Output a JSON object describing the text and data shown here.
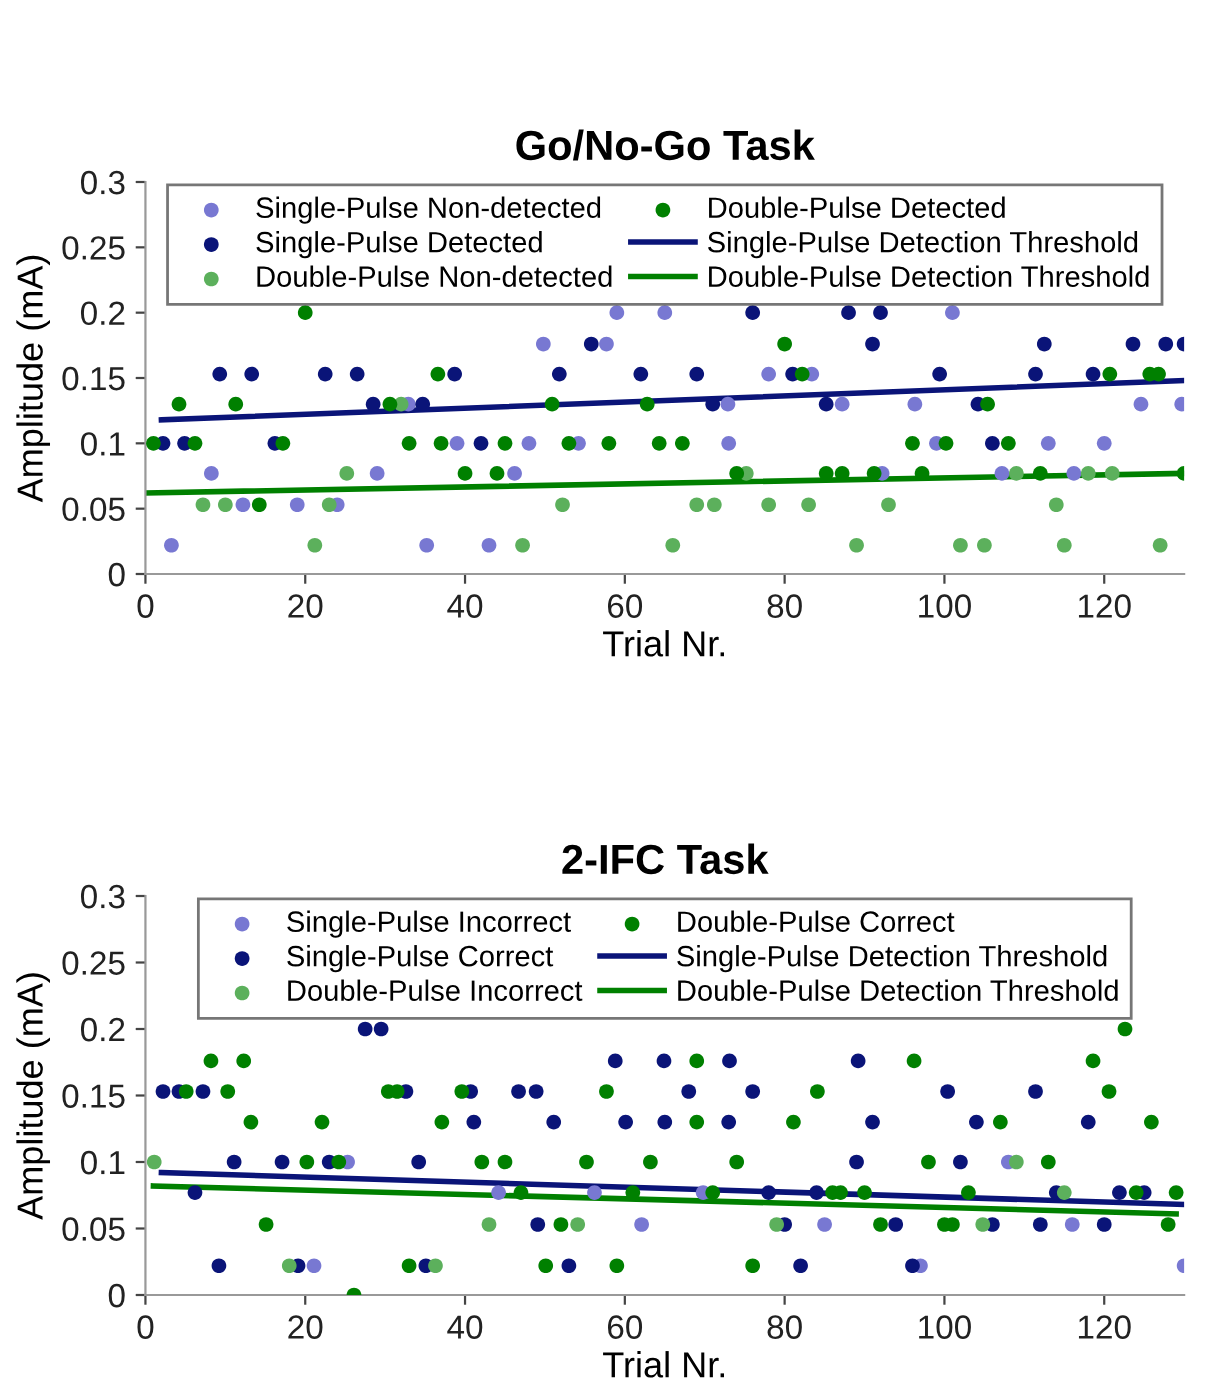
{
  "chart_data": [
    {
      "type": "scatter",
      "title": "Go/No-Go Task",
      "xlabel": "Trial Nr.",
      "ylabel": "Amplitude (mA)",
      "xlim": [
        0,
        130
      ],
      "ylim": [
        0,
        0.3
      ],
      "xticks": [
        0,
        20,
        40,
        60,
        80,
        100,
        120
      ],
      "yticks": [
        0,
        0.05,
        0.1,
        0.15,
        0.2,
        0.25,
        0.3
      ],
      "grid": false,
      "legend": "top",
      "marker": "circle",
      "series": [
        {
          "name": "Single-Pulse Non-detected",
          "color": "#7878d2",
          "x": [
            59,
            65,
            101,
            49.8,
            57.7,
            78,
            83.4,
            32.9,
            72.9,
            87.2,
            96.3,
            124.6,
            129.7,
            39,
            48,
            54.2,
            73,
            99,
            113,
            120,
            8.25,
            29,
            46.2,
            92.2,
            107.2,
            116.2,
            12.2,
            19,
            24,
            3.25,
            35.2,
            43
          ],
          "values": [
            0.2,
            0.2,
            0.2,
            0.176,
            0.176,
            0.153,
            0.153,
            0.13,
            0.13,
            0.13,
            0.13,
            0.13,
            0.13,
            0.1,
            0.1,
            0.1,
            0.1,
            0.1,
            0.1,
            0.1,
            0.077,
            0.077,
            0.077,
            0.077,
            0.077,
            0.077,
            0.053,
            0.053,
            0.053,
            0.022,
            0.022,
            0.022
          ]
        },
        {
          "name": "Single-Pulse Detected",
          "color": "#0a1478",
          "x": [
            76,
            88,
            92,
            55.8,
            91,
            112.5,
            123.6,
            127.7,
            130,
            9.3,
            13.3,
            22.5,
            26.5,
            38.7,
            51.8,
            62,
            69,
            81,
            99.4,
            111.4,
            118.6,
            28.5,
            34.7,
            71,
            85.2,
            104.2,
            2.2,
            4.9,
            16.2,
            42,
            106
          ],
          "values": [
            0.2,
            0.2,
            0.2,
            0.176,
            0.176,
            0.176,
            0.176,
            0.176,
            0.176,
            0.153,
            0.153,
            0.153,
            0.153,
            0.153,
            0.153,
            0.153,
            0.153,
            0.153,
            0.153,
            0.153,
            0.153,
            0.13,
            0.13,
            0.13,
            0.13,
            0.13,
            0.1,
            0.1,
            0.1,
            0.1,
            0.1
          ]
        },
        {
          "name": "Double-Pulse Non-detected",
          "color": "#5cb05c",
          "x": [
            32,
            25.2,
            75.2,
            109,
            118,
            121,
            7.2,
            10,
            23,
            52.2,
            69,
            71.2,
            78,
            83,
            93,
            114,
            21.2,
            47.2,
            66,
            89,
            102,
            105,
            115,
            127
          ],
          "values": [
            0.13,
            0.077,
            0.077,
            0.077,
            0.077,
            0.077,
            0.053,
            0.053,
            0.053,
            0.053,
            0.053,
            0.053,
            0.053,
            0.053,
            0.053,
            0.053,
            0.022,
            0.022,
            0.022,
            0.022,
            0.022,
            0.022,
            0.022,
            0.022
          ]
        },
        {
          "name": "Double-Pulse Detected",
          "color": "#008000",
          "x": [
            20,
            80,
            36.6,
            82.2,
            120.7,
            125.7,
            126.8,
            4.2,
            11.3,
            30.6,
            50.9,
            62.8,
            105.4,
            1,
            6.2,
            17.2,
            33,
            37,
            45,
            53,
            58,
            64.3,
            67.2,
            96,
            100.2,
            108,
            40,
            44,
            74,
            85.2,
            87.2,
            91.2,
            97.2,
            112,
            130,
            14.25
          ],
          "values": [
            0.2,
            0.176,
            0.153,
            0.153,
            0.153,
            0.153,
            0.153,
            0.13,
            0.13,
            0.13,
            0.13,
            0.13,
            0.13,
            0.1,
            0.1,
            0.1,
            0.1,
            0.1,
            0.1,
            0.1,
            0.1,
            0.1,
            0.1,
            0.1,
            0.1,
            0.1,
            0.077,
            0.077,
            0.077,
            0.077,
            0.077,
            0.077,
            0.077,
            0.077,
            0.077,
            0.053
          ]
        },
        {
          "name": "Single-Pulse Detection Threshold",
          "type": "line",
          "marker": "none",
          "color": "#0a1478",
          "x": [
            2,
            130
          ],
          "values": [
            0.118,
            0.148
          ]
        },
        {
          "name": "Double-Pulse Detection Threshold",
          "type": "line",
          "marker": "none",
          "color": "#008000",
          "x": [
            0,
            130
          ],
          "values": [
            0.062,
            0.077
          ]
        }
      ]
    },
    {
      "type": "scatter",
      "title": "2-IFC Task",
      "xlabel": "Trial Nr.",
      "ylabel": "Amplitude (mA)",
      "xlim": [
        0,
        130
      ],
      "ylim": [
        0,
        0.3
      ],
      "xticks": [
        0,
        20,
        40,
        60,
        80,
        100,
        120
      ],
      "yticks": [
        0,
        0.05,
        0.1,
        0.15,
        0.2,
        0.25,
        0.3
      ],
      "grid": false,
      "legend": "top",
      "marker": "circle",
      "series": [
        {
          "name": "Single-Pulse Incorrect",
          "color": "#7878d2",
          "x": [
            25.3,
            108,
            44.2,
            56.2,
            69.8,
            62.1,
            85,
            116,
            21.1,
            97,
            130
          ],
          "values": [
            0.1,
            0.1,
            0.077,
            0.077,
            0.077,
            0.053,
            0.053,
            0.053,
            0.022,
            0.022,
            0.022
          ]
        },
        {
          "name": "Single-Pulse Correct",
          "color": "#0a1478",
          "x": [
            27.5,
            29.5,
            58.8,
            64.9,
            73.1,
            89.2,
            2.2,
            4.2,
            7.2,
            32.6,
            40.7,
            46.7,
            48.9,
            68,
            76,
            100.4,
            111.4,
            41.1,
            51.1,
            60.1,
            65,
            73,
            91,
            104,
            118,
            11.1,
            17.1,
            23,
            34.2,
            89,
            102,
            6.2,
            78,
            84,
            114,
            121.9,
            125,
            49.1,
            80,
            93.9,
            106,
            112,
            120,
            9.2,
            19.1,
            35.1,
            53,
            82,
            96
          ],
          "values": [
            0.2,
            0.2,
            0.176,
            0.176,
            0.176,
            0.176,
            0.153,
            0.153,
            0.153,
            0.153,
            0.153,
            0.153,
            0.153,
            0.153,
            0.153,
            0.153,
            0.153,
            0.13,
            0.13,
            0.13,
            0.13,
            0.13,
            0.13,
            0.13,
            0.13,
            0.1,
            0.1,
            0.1,
            0.1,
            0.1,
            0.1,
            0.077,
            0.077,
            0.077,
            0.077,
            0.077,
            0.077,
            0.053,
            0.053,
            0.053,
            0.053,
            0.053,
            0.053,
            0.022,
            0.022,
            0.022,
            0.022,
            0.022,
            0.022
          ]
        },
        {
          "name": "Double-Pulse Incorrect",
          "color": "#5cb05c",
          "x": [
            1.1,
            109,
            115,
            43,
            54.1,
            79,
            104.8,
            18,
            36.3
          ],
          "values": [
            0.1,
            0.1,
            0.077,
            0.053,
            0.053,
            0.053,
            0.053,
            0.022,
            0.022
          ]
        },
        {
          "name": "Double-Pulse Correct",
          "color": "#008000",
          "x": [
            122.6,
            8.2,
            12.3,
            69,
            96.2,
            118.6,
            5.1,
            10.3,
            30.4,
            31.5,
            39.6,
            57.7,
            84.1,
            120.6,
            13.2,
            22.1,
            37.1,
            69,
            81.1,
            107,
            125.9,
            20.2,
            24.2,
            42.1,
            45,
            55.2,
            63.2,
            74,
            98,
            113,
            47,
            61,
            71,
            86,
            87,
            90,
            103,
            124,
            129,
            15.1,
            52,
            92,
            100,
            101,
            128,
            33,
            50.1,
            59,
            76,
            26.1
          ],
          "values": [
            0.2,
            0.176,
            0.176,
            0.176,
            0.176,
            0.176,
            0.153,
            0.153,
            0.153,
            0.153,
            0.153,
            0.153,
            0.153,
            0.153,
            0.13,
            0.13,
            0.13,
            0.13,
            0.13,
            0.13,
            0.13,
            0.1,
            0.1,
            0.1,
            0.1,
            0.1,
            0.1,
            0.1,
            0.1,
            0.1,
            0.077,
            0.077,
            0.077,
            0.077,
            0.077,
            0.077,
            0.077,
            0.077,
            0.077,
            0.053,
            0.053,
            0.053,
            0.053,
            0.053,
            0.053,
            0.022,
            0.022,
            0.022,
            0.022,
            0
          ]
        },
        {
          "name": "Single-Pulse Detection Threshold",
          "type": "line",
          "marker": "none",
          "color": "#0a1478",
          "x": [
            2,
            130
          ],
          "values": [
            0.092,
            0.068
          ]
        },
        {
          "name": "Double-Pulse Detection Threshold",
          "type": "line",
          "marker": "none",
          "color": "#008000",
          "x": [
            1,
            129
          ],
          "values": [
            0.082,
            0.061
          ]
        }
      ]
    }
  ]
}
